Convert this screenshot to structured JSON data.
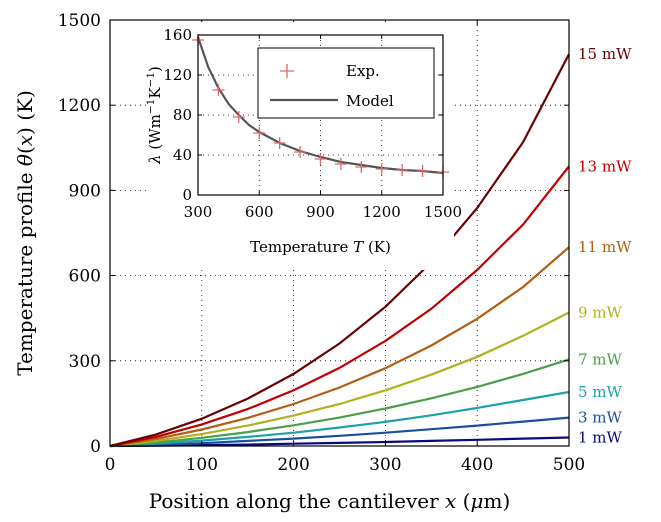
{
  "chart_data": [
    {
      "type": "line",
      "title": "",
      "xlabel": "Position along the cantilever x (μm)",
      "ylabel": "Temperature profile θ(x) (K)",
      "xlim": [
        0,
        500
      ],
      "ylim": [
        0,
        1500
      ],
      "xticks": [
        "0",
        "100",
        "200",
        "300",
        "400",
        "500"
      ],
      "yticks": [
        "0",
        "300",
        "600",
        "900",
        "1200",
        "1500"
      ],
      "grid": true,
      "x": [
        0,
        50,
        100,
        150,
        200,
        250,
        300,
        350,
        400,
        450,
        500
      ],
      "series": [
        {
          "name": "1 mW",
          "color": "#0a0a7a",
          "values": [
            0,
            1,
            3,
            5,
            8,
            11,
            14,
            18,
            22,
            26,
            30
          ]
        },
        {
          "name": "3 mW",
          "color": "#1a4fa0",
          "values": [
            0,
            4,
            10,
            18,
            26,
            36,
            47,
            59,
            72,
            86,
            100
          ]
        },
        {
          "name": "5 mW",
          "color": "#1ea0a8",
          "values": [
            0,
            8,
            19,
            32,
            47,
            65,
            85,
            108,
            134,
            162,
            190
          ]
        },
        {
          "name": "7 mW",
          "color": "#4b9e4b",
          "values": [
            0,
            12,
            29,
            49,
            73,
            100,
            132,
            168,
            208,
            254,
            305
          ]
        },
        {
          "name": "9 mW",
          "color": "#b0b020",
          "values": [
            0,
            18,
            42,
            72,
            107,
            148,
            196,
            251,
            314,
            388,
            470
          ]
        },
        {
          "name": "11 mW",
          "color": "#b06010",
          "values": [
            0,
            25,
            58,
            99,
            148,
            206,
            274,
            354,
            448,
            560,
            700
          ]
        },
        {
          "name": "13 mW",
          "color": "#c00000",
          "values": [
            0,
            32,
            76,
            130,
            196,
            275,
            370,
            483,
            620,
            780,
            985
          ]
        },
        {
          "name": "15 mW",
          "color": "#6b0000",
          "values": [
            0,
            40,
            96,
            167,
            254,
            361,
            490,
            647,
            838,
            1070,
            1380
          ]
        }
      ]
    },
    {
      "type": "scatter",
      "title": "",
      "xlabel": "Temperature T (K)",
      "ylabel": "λ (Wm⁻¹K⁻¹)",
      "xlim": [
        300,
        1500
      ],
      "ylim": [
        0,
        160
      ],
      "xticks": [
        "300",
        "600",
        "900",
        "1200",
        "1500"
      ],
      "yticks": [
        "0",
        "40",
        "80",
        "120",
        "160"
      ],
      "grid": true,
      "legend": "top-right",
      "legend_entries": [
        "Exp.",
        "Model"
      ],
      "series": [
        {
          "name": "Exp.",
          "marker": "+",
          "color": "#d96a6a",
          "x": [
            300,
            400,
            500,
            600,
            700,
            800,
            900,
            1000,
            1100,
            1200,
            1300,
            1400,
            1500
          ],
          "y": [
            155,
            105,
            78,
            62,
            52,
            43,
            36,
            31,
            28,
            26,
            25,
            24,
            23
          ]
        },
        {
          "name": "Model",
          "type": "line",
          "color": "#555555",
          "x": [
            300,
            350,
            400,
            450,
            500,
            550,
            600,
            700,
            800,
            900,
            1000,
            1100,
            1200,
            1300,
            1400,
            1500
          ],
          "y": [
            158,
            128,
            107,
            91,
            80,
            70,
            63,
            52,
            44,
            38,
            33,
            30,
            27,
            25,
            24,
            22
          ]
        }
      ]
    }
  ]
}
